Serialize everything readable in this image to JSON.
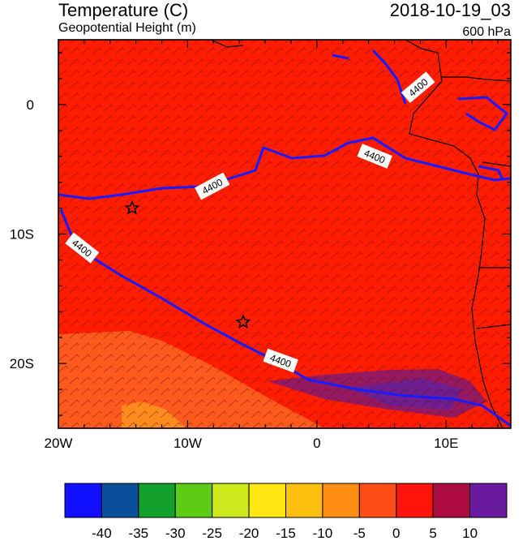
{
  "header": {
    "title": "Temperature (C)",
    "subtitle": "Geopotential Height (m)",
    "datetime": "2018-10-19_03",
    "level": "600 hPa"
  },
  "map": {
    "lon_range": [
      -20,
      15
    ],
    "lat_range": [
      -25,
      5
    ],
    "lon_ticks": [
      {
        "value": -20,
        "label": "20W"
      },
      {
        "value": -10,
        "label": "10W"
      },
      {
        "value": 0,
        "label": "0"
      },
      {
        "value": 10,
        "label": "10E"
      }
    ],
    "lat_ticks": [
      {
        "value": 0,
        "label": "0"
      },
      {
        "value": -10,
        "label": "10S"
      },
      {
        "value": -20,
        "label": "20S"
      }
    ],
    "contour_labels": [
      "4400",
      "4400",
      "4400",
      "4400",
      "4400"
    ],
    "markers": [
      {
        "name": "star-marker-1",
        "lon": -14.3,
        "lat": -8.0
      },
      {
        "name": "star-marker-2",
        "lon": -5.7,
        "lat": -16.8
      }
    ],
    "colors": {
      "background_field": "#ff1d00",
      "warm_purple": "#7a208a",
      "cool_orange": "#ff5a1e",
      "cooler_orange": "#ff8a1e",
      "contour": "#1a1aff"
    }
  },
  "colorbar": {
    "labels": [
      "-40",
      "-35",
      "-30",
      "-25",
      "-20",
      "-15",
      "-10",
      "-5",
      "0",
      "5",
      "10"
    ],
    "colors": [
      "#1010ff",
      "#0a4f9a",
      "#13a02c",
      "#5ccc14",
      "#cde81b",
      "#ffe811",
      "#ffbf0f",
      "#ff8d14",
      "#ff4d17",
      "#ff140c",
      "#ad0c43",
      "#6a1a9e"
    ]
  }
}
